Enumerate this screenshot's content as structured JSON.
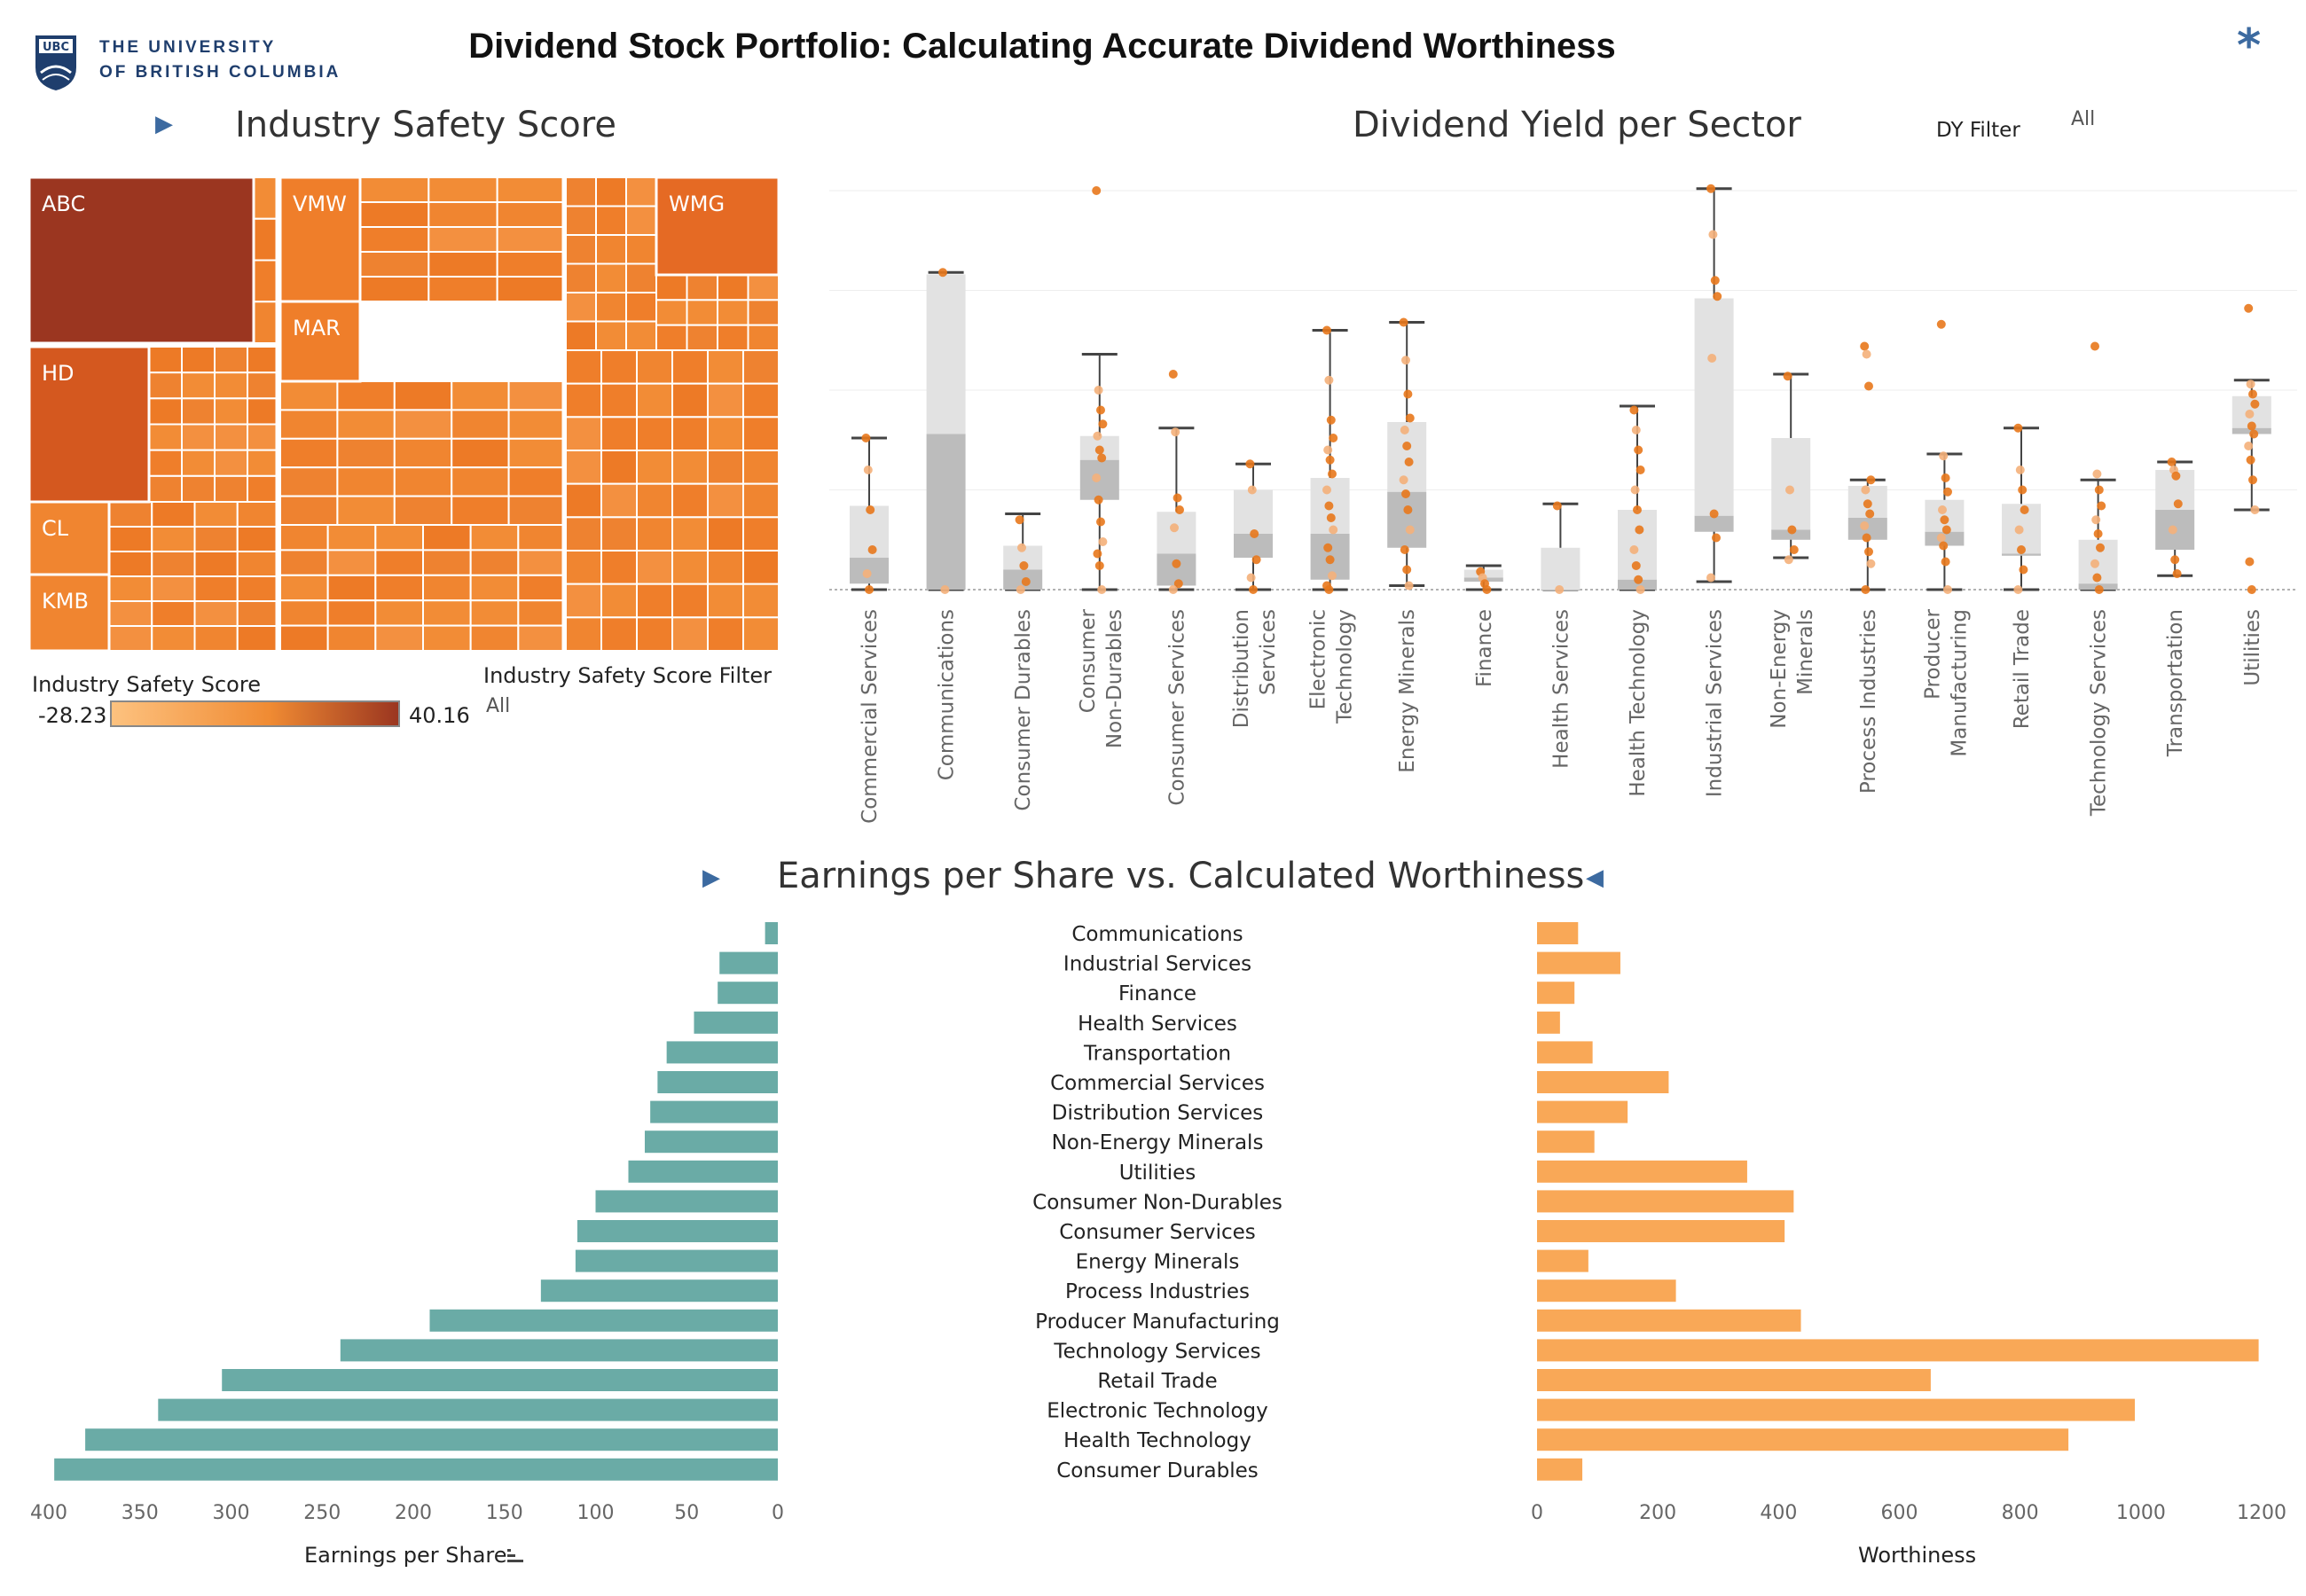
{
  "header": {
    "title": "Dividend Stock Portfolio: Calculating Accurate Dividend Worthiness",
    "logo_line1": "THE UNIVERSITY",
    "logo_line2": "OF BRITISH COLUMBIA",
    "logo_badge": "UBC",
    "menu_icon": "asterisk-icon"
  },
  "treemap": {
    "title": "Industry Safety Score",
    "collapse_icon": "play-arrow-icon",
    "labels": [
      "ABC",
      "VMW",
      "WMG",
      "MAR",
      "HD",
      "CL",
      "KMB"
    ],
    "legend_title": "Industry Safety Score",
    "legend_min": "-28.23",
    "legend_max": "40.16",
    "filter_title": "Industry Safety Score Filter",
    "filter_value": "All",
    "colors": {
      "low": "#fdc27f",
      "mid": "#f08b33",
      "high": "#9b3620"
    }
  },
  "boxplot": {
    "title": "Dividend Yield per Sector",
    "filter_title": "DY Filter",
    "filter_value": "All"
  },
  "bars": {
    "title": "Earnings per Share vs. Calculated Worthiness",
    "left_icon": "play-arrow-icon",
    "right_icon": "reverse-arrow-icon",
    "eps_axis_label": "Earnings per Share",
    "eps_sort_icon": "sort-descending-icon",
    "worth_axis_label": "Worthiness"
  },
  "chart_data": [
    {
      "type": "bar",
      "orientation": "horizontal",
      "categories": [
        "Communications",
        "Industrial Services",
        "Finance",
        "Health Services",
        "Transportation",
        "Commercial Services",
        "Distribution Services",
        "Non-Energy Minerals",
        "Utilities",
        "Consumer Non-Durables",
        "Consumer Services",
        "Energy Minerals",
        "Process Industries",
        "Producer Manufacturing",
        "Technology Services",
        "Retail Trade",
        "Electronic Technology",
        "Health Technology",
        "Consumer Durables"
      ],
      "values": [
        7,
        32,
        33,
        46,
        61,
        66,
        70,
        73,
        82,
        100,
        110,
        111,
        130,
        191,
        240,
        305,
        340,
        380,
        397
      ],
      "xlabel": "Earnings per Share",
      "xlim": [
        0,
        400
      ],
      "xticks": [
        400,
        350,
        300,
        250,
        200,
        150,
        100,
        50,
        0
      ],
      "color": "#6aaba6"
    },
    {
      "type": "bar",
      "orientation": "horizontal",
      "categories": [
        "Communications",
        "Industrial Services",
        "Finance",
        "Health Services",
        "Transportation",
        "Commercial Services",
        "Distribution Services",
        "Non-Energy Minerals",
        "Utilities",
        "Consumer Non-Durables",
        "Consumer Services",
        "Energy Minerals",
        "Process Industries",
        "Producer Manufacturing",
        "Technology Services",
        "Retail Trade",
        "Electronic Technology",
        "Health Technology",
        "Consumer Durables"
      ],
      "values": [
        68,
        138,
        62,
        38,
        92,
        218,
        150,
        95,
        348,
        425,
        410,
        85,
        230,
        437,
        1195,
        652,
        990,
        880,
        75
      ],
      "xlabel": "Worthiness",
      "xlim": [
        0,
        1200
      ],
      "xticks": [
        0,
        200,
        400,
        600,
        800,
        1000,
        1200
      ],
      "color": "#f9a857"
    },
    {
      "type": "box",
      "title": "Dividend Yield per Sector",
      "categories": [
        [
          "Commercial Services"
        ],
        [
          "Communications"
        ],
        [
          "Consumer Durables"
        ],
        [
          "Consumer",
          "Non-Durables"
        ],
        [
          "Consumer Services"
        ],
        [
          "Distribution",
          "Services"
        ],
        [
          "Electronic",
          "Technology"
        ],
        [
          "Energy Minerals"
        ],
        [
          "Finance"
        ],
        [
          "Health Services"
        ],
        [
          "Health Technology"
        ],
        [
          "Industrial Services"
        ],
        [
          "Non-Energy",
          "Minerals"
        ],
        [
          "Process Industries"
        ],
        [
          "Producer",
          "Manufacturing"
        ],
        [
          "Retail Trade"
        ],
        [
          "Technology Services"
        ],
        [
          "Transportation"
        ],
        [
          "Utilities"
        ]
      ],
      "series": [
        {
          "min": 0,
          "q1": 0.3,
          "median": 1.6,
          "q3": 4.2,
          "max": 7.6,
          "points": [
            7.6,
            6.0,
            4.0,
            2.0,
            0.8,
            0
          ]
        },
        {
          "min": 0,
          "q1": 0,
          "median": 7.8,
          "q3": 15.8,
          "max": 15.9,
          "points": [
            15.9,
            0
          ]
        },
        {
          "min": 0,
          "q1": 0,
          "median": 1.0,
          "q3": 2.2,
          "max": 3.8,
          "points": [
            3.5,
            2.1,
            1.2,
            0.4,
            0
          ]
        },
        {
          "min": 0,
          "q1": 4.5,
          "median": 6.5,
          "q3": 7.7,
          "max": 11.8,
          "points": [
            20.0,
            10.0,
            9.0,
            8.3,
            7.7,
            7.0,
            6.6,
            5.6,
            4.5,
            3.4,
            2.4,
            1.8,
            1.2,
            0
          ]
        },
        {
          "min": 0,
          "q1": 0.2,
          "median": 1.8,
          "q3": 3.9,
          "max": 8.1,
          "points": [
            10.8,
            7.9,
            4.6,
            4.0,
            3.1,
            1.3,
            0.3,
            0
          ]
        },
        {
          "min": 0,
          "q1": 1.6,
          "median": 2.8,
          "q3": 5.0,
          "max": 6.3,
          "points": [
            6.3,
            5.0,
            2.8,
            1.5,
            0.6,
            0
          ]
        },
        {
          "min": 0,
          "q1": 0.5,
          "median": 2.8,
          "q3": 5.6,
          "max": 13.0,
          "points": [
            13.0,
            10.5,
            8.5,
            7.6,
            7.0,
            6.5,
            5.8,
            5.0,
            4.2,
            3.6,
            3.0,
            2.1,
            1.5,
            0.7,
            0.2,
            0
          ]
        },
        {
          "min": 0.2,
          "q1": 2.1,
          "median": 4.9,
          "q3": 8.4,
          "max": 13.4,
          "points": [
            13.4,
            11.5,
            9.8,
            8.6,
            8.0,
            7.2,
            6.4,
            5.5,
            4.8,
            4.0,
            3.0,
            2.0,
            1.0,
            0.2
          ]
        },
        {
          "min": 0,
          "q1": 0.4,
          "median": 0.6,
          "q3": 1.0,
          "max": 1.2,
          "points": [
            0.9,
            0.6,
            0.3,
            0
          ]
        },
        {
          "min": 0,
          "q1": 0,
          "median": 0,
          "q3": 2.1,
          "max": 4.3,
          "points": [
            4.2,
            0
          ]
        },
        {
          "min": 0,
          "q1": 0,
          "median": 0.5,
          "q3": 4.0,
          "max": 9.2,
          "points": [
            9.0,
            8.0,
            7.0,
            6.0,
            5.0,
            4.0,
            3.0,
            2.0,
            1.2,
            0.5,
            0
          ]
        },
        {
          "min": 0.4,
          "q1": 2.9,
          "median": 3.7,
          "q3": 14.6,
          "max": 20.1,
          "points": [
            20.1,
            17.8,
            15.5,
            14.7,
            11.6,
            3.8,
            2.6,
            0.6
          ]
        },
        {
          "min": 1.6,
          "q1": 2.5,
          "median": 3.0,
          "q3": 7.6,
          "max": 10.8,
          "points": [
            10.7,
            5.0,
            3.0,
            2.0,
            1.5
          ]
        },
        {
          "min": 0,
          "q1": 2.5,
          "median": 3.6,
          "q3": 5.2,
          "max": 5.5,
          "points": [
            12.2,
            11.8,
            10.2,
            5.5,
            5.0,
            4.3,
            3.8,
            3.2,
            2.6,
            1.9,
            1.3,
            0
          ]
        },
        {
          "min": 0,
          "q1": 2.2,
          "median": 2.9,
          "q3": 4.5,
          "max": 6.8,
          "points": [
            13.3,
            6.7,
            5.6,
            4.9,
            4.0,
            3.5,
            3.0,
            2.6,
            2.2,
            1.4,
            0
          ]
        },
        {
          "min": 0,
          "q1": 1.7,
          "median": 1.8,
          "q3": 4.3,
          "max": 8.1,
          "points": [
            8.1,
            6.0,
            5.0,
            4.0,
            3.0,
            2.0,
            1.0,
            0
          ]
        },
        {
          "min": 0,
          "q1": 0,
          "median": 0.3,
          "q3": 2.5,
          "max": 5.5,
          "points": [
            12.2,
            5.8,
            5.0,
            4.2,
            3.5,
            2.8,
            2.1,
            1.3,
            0.6,
            0
          ]
        },
        {
          "min": 0.7,
          "q1": 2.0,
          "median": 4.0,
          "q3": 6.0,
          "max": 6.4,
          "points": [
            6.4,
            6.0,
            5.7,
            4.3,
            3.0,
            1.5,
            0.8
          ]
        },
        {
          "min": 4.0,
          "q1": 7.8,
          "median": 8.1,
          "q3": 9.7,
          "max": 10.5,
          "points": [
            14.1,
            10.3,
            9.8,
            9.3,
            8.8,
            8.2,
            7.8,
            7.2,
            6.5,
            5.5,
            4.0,
            1.4,
            0
          ]
        }
      ],
      "ylim": [
        0,
        20
      ]
    }
  ]
}
